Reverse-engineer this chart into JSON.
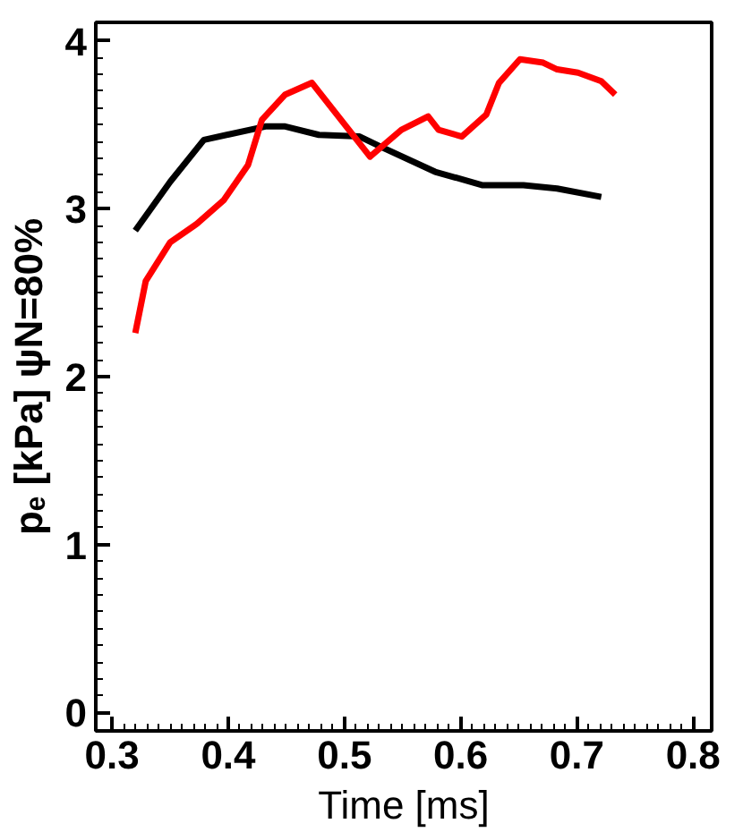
{
  "chart_data": {
    "type": "line",
    "xlabel": "Time [ms]",
    "ylabel": "pₑ [kPa] ψN=80%",
    "xlim": [
      0.286,
      0.816
    ],
    "ylim": [
      -0.11,
      4.11
    ],
    "xticks": [
      0.3,
      0.4,
      0.5,
      0.6,
      0.7,
      0.8
    ],
    "yticks": [
      0,
      1,
      2,
      3,
      4
    ],
    "grid": false,
    "line_style": "solid",
    "marker": "none",
    "series": [
      {
        "color": "#000000",
        "x": [
          0.32,
          0.35,
          0.379,
          0.432,
          0.449,
          0.478,
          0.513,
          0.531,
          0.578,
          0.619,
          0.654,
          0.683,
          0.721
        ],
        "values": [
          2.87,
          3.16,
          3.41,
          3.49,
          3.49,
          3.44,
          3.43,
          3.37,
          3.22,
          3.14,
          3.14,
          3.12,
          3.07
        ]
      },
      {
        "color": "#ff0000",
        "x": [
          0.32,
          0.329,
          0.35,
          0.373,
          0.396,
          0.417,
          0.429,
          0.449,
          0.472,
          0.522,
          0.549,
          0.572,
          0.581,
          0.601,
          0.622,
          0.633,
          0.651,
          0.671,
          0.683,
          0.701,
          0.721,
          0.733
        ],
        "values": [
          2.26,
          2.57,
          2.8,
          2.91,
          3.05,
          3.26,
          3.53,
          3.68,
          3.75,
          3.31,
          3.47,
          3.55,
          3.47,
          3.43,
          3.56,
          3.75,
          3.89,
          3.87,
          3.83,
          3.81,
          3.76,
          3.68
        ]
      }
    ]
  }
}
